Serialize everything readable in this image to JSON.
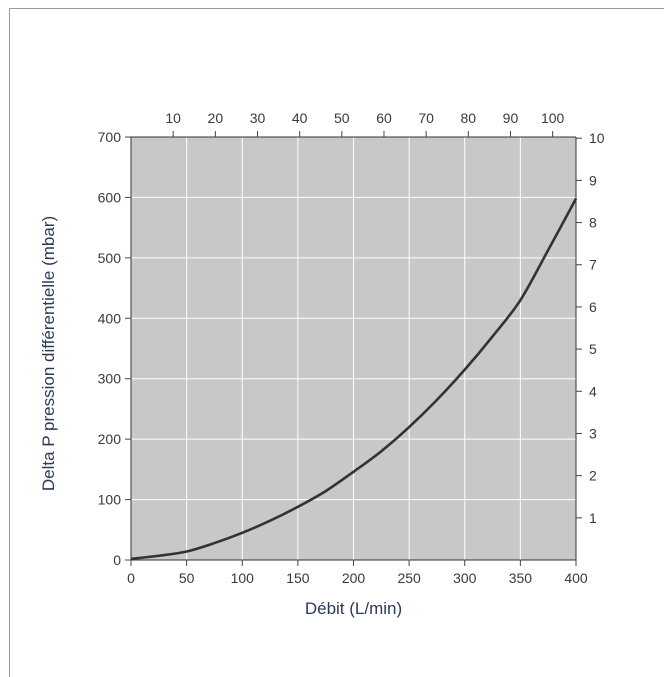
{
  "chart_data": {
    "type": "line",
    "title": "",
    "xlabel": "Débit (L/min)",
    "ylabel": "Delta P pression différentielle (mbar)",
    "xlim": [
      0,
      400
    ],
    "ylim": [
      0,
      700
    ],
    "x_ticks": [
      0,
      50,
      100,
      150,
      200,
      250,
      300,
      350,
      400
    ],
    "y_ticks": [
      0,
      100,
      200,
      300,
      400,
      500,
      600,
      700
    ],
    "top_axis": {
      "ticks": [
        10,
        20,
        30,
        40,
        50,
        60,
        70,
        80,
        90,
        100
      ],
      "scale": "x_bottom / 3.79"
    },
    "right_axis": {
      "ticks": [
        1,
        2,
        3,
        4,
        5,
        6,
        7,
        8,
        9,
        10
      ],
      "scale": "y_left / 69.8"
    },
    "grid": true,
    "background": "#c8c8c8",
    "line_color": "#333333",
    "series": [
      {
        "x": [
          0,
          25,
          50,
          75,
          100,
          125,
          150,
          175,
          200,
          225,
          250,
          275,
          300,
          325,
          350,
          375,
          400
        ],
        "y": [
          2,
          7,
          14,
          28,
          45,
          65,
          88,
          114,
          146,
          180,
          220,
          265,
          315,
          370,
          430,
          513,
          598
        ]
      }
    ]
  }
}
